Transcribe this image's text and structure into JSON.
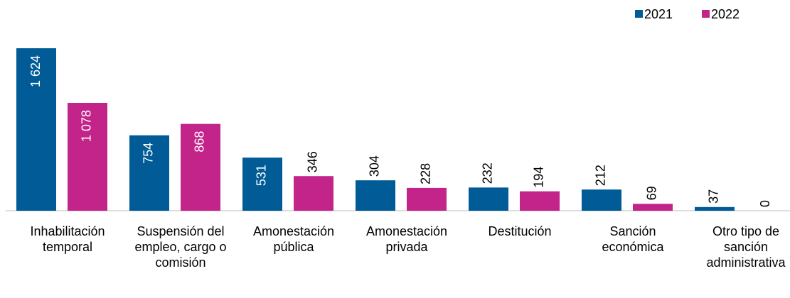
{
  "chart_data": {
    "type": "bar",
    "categories": [
      "Inhabilitación temporal",
      "Suspensión del empleo, cargo o comisión",
      "Amonestación pública",
      "Amonestación privada",
      "Destitución",
      "Sanción económica",
      "Otro tipo de sanción administrativa"
    ],
    "series": [
      {
        "name": "2021",
        "color": "#005b96",
        "values": [
          1624,
          754,
          531,
          304,
          232,
          212,
          37
        ],
        "value_labels": [
          "1 624",
          "754",
          "531",
          "304",
          "232",
          "212",
          "37"
        ]
      },
      {
        "name": "2022",
        "color": "#c2248a",
        "values": [
          1078,
          868,
          346,
          228,
          194,
          69,
          0
        ],
        "value_labels": [
          "1 078",
          "868",
          "346",
          "228",
          "194",
          "69",
          "0"
        ]
      }
    ],
    "legend": "top-right"
  }
}
